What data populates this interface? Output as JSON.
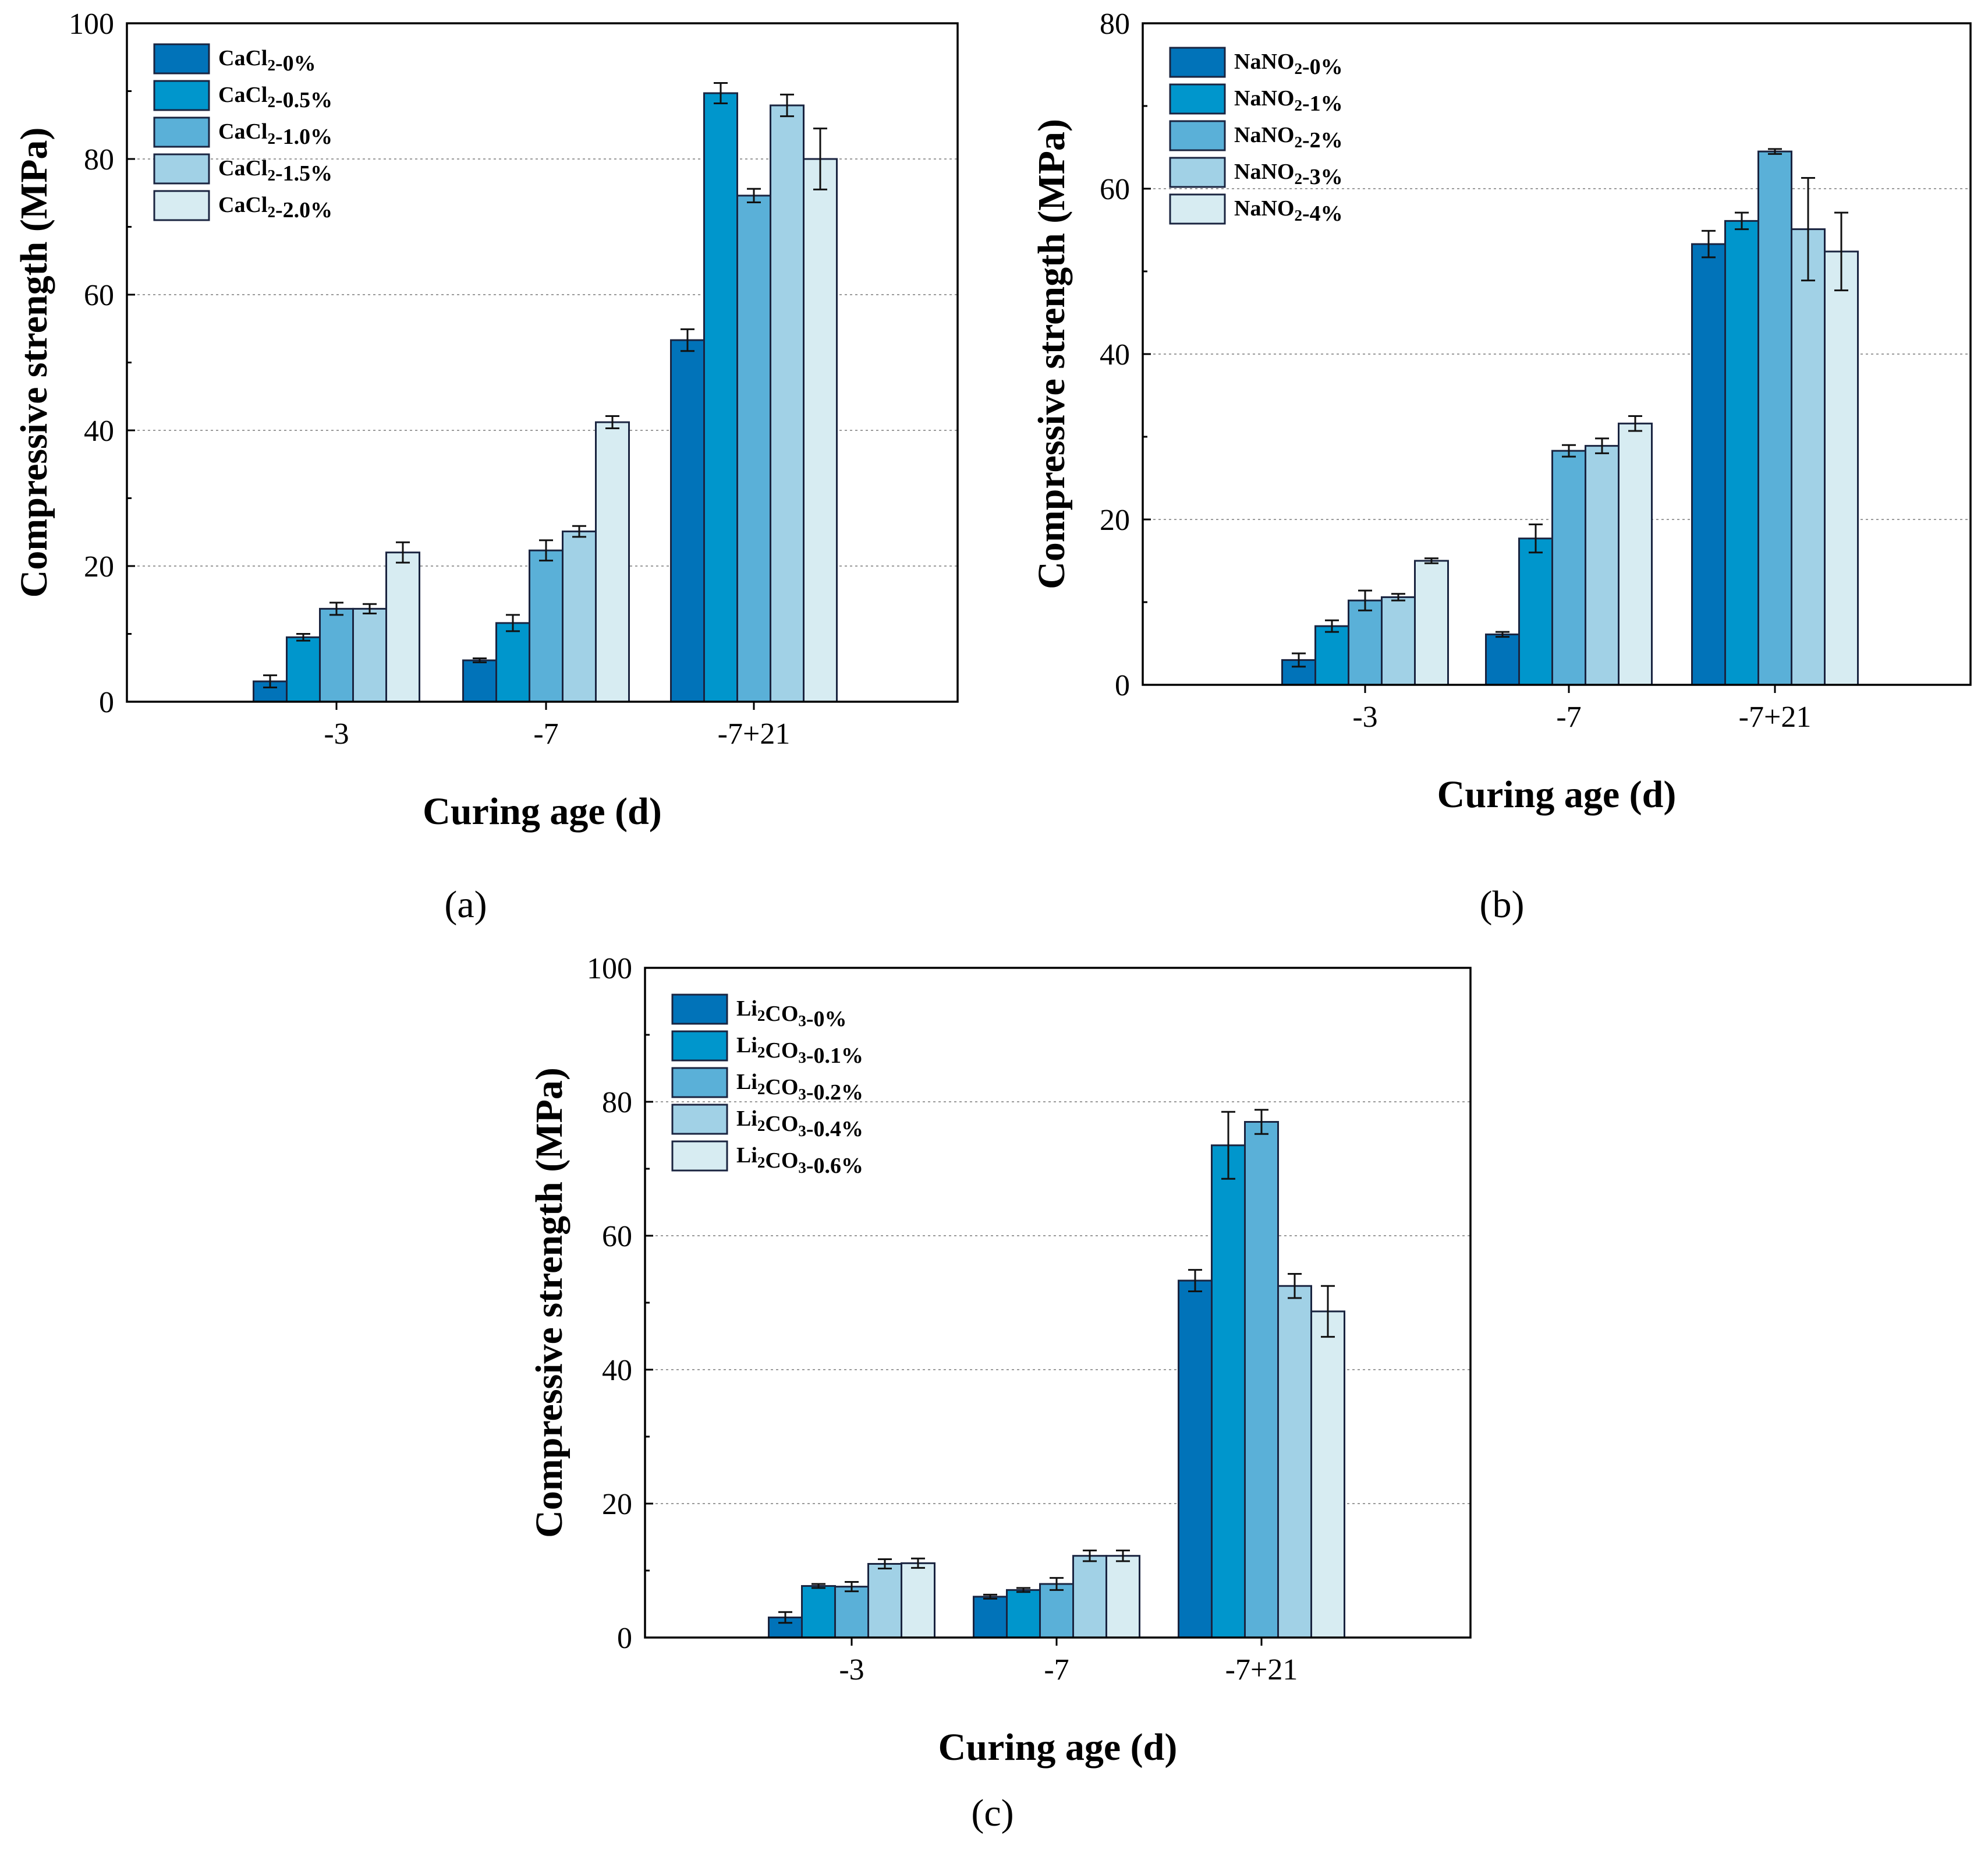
{
  "colors": [
    "#0173b9",
    "#0096cc",
    "#5ab0d8",
    "#a1d1e6",
    "#d7ecf2"
  ],
  "chart_data": [
    {
      "type": "bar",
      "panel_label": "(a)",
      "xlabel": "Curing age (d)",
      "ylabel": "Compressive strength (MPa)",
      "ylim": [
        0,
        100
      ],
      "yticks": [
        "0",
        "20",
        "40",
        "60",
        "80",
        "100"
      ],
      "categories": [
        "-3",
        "-7",
        "-7+21"
      ],
      "grid": true,
      "legend_position": "top-left",
      "series": [
        {
          "name": "CaCl₂-0%",
          "values": [
            3.0,
            6.1,
            53.3
          ],
          "errors": [
            0.9,
            0.3,
            1.6
          ]
        },
        {
          "name": "CaCl₂-0.5%",
          "values": [
            9.5,
            11.6,
            89.7
          ],
          "errors": [
            0.5,
            1.2,
            1.5
          ]
        },
        {
          "name": "CaCl₂-1.0%",
          "values": [
            13.7,
            22.3,
            74.6
          ],
          "errors": [
            0.9,
            1.5,
            1.0
          ]
        },
        {
          "name": "CaCl₂-1.5%",
          "values": [
            13.7,
            25.1,
            87.9
          ],
          "errors": [
            0.7,
            0.8,
            1.6
          ]
        },
        {
          "name": "CaCl₂-2.0%",
          "values": [
            22.0,
            41.2,
            80.0
          ],
          "errors": [
            1.5,
            0.9,
            4.5
          ]
        }
      ]
    },
    {
      "type": "bar",
      "panel_label": "(b)",
      "xlabel": "Curing age (d)",
      "ylabel": "Compressive strength (MPa)",
      "ylim": [
        0,
        80
      ],
      "yticks": [
        "0",
        "20",
        "40",
        "60",
        "80"
      ],
      "categories": [
        "-3",
        "-7",
        "-7+21"
      ],
      "grid": true,
      "legend_position": "top-left",
      "series": [
        {
          "name": "NaNO₂-0%",
          "values": [
            3.0,
            6.1,
            53.3
          ],
          "errors": [
            0.8,
            0.3,
            1.6
          ]
        },
        {
          "name": "NaNO₂-1%",
          "values": [
            7.1,
            17.7,
            56.1
          ],
          "errors": [
            0.7,
            1.7,
            1.0
          ]
        },
        {
          "name": "NaNO₂-2%",
          "values": [
            10.2,
            28.3,
            64.5
          ],
          "errors": [
            1.2,
            0.7,
            0.3
          ]
        },
        {
          "name": "NaNO₂-3%",
          "values": [
            10.6,
            28.9,
            55.1
          ],
          "errors": [
            0.4,
            0.9,
            6.2
          ]
        },
        {
          "name": "NaNO₂-4%",
          "values": [
            15.0,
            31.6,
            52.4
          ],
          "errors": [
            0.3,
            0.9,
            4.7
          ]
        }
      ]
    },
    {
      "type": "bar",
      "panel_label": "(c)",
      "xlabel": "Curing age (d)",
      "ylabel": "Compressive strength (MPa)",
      "ylim": [
        0,
        100
      ],
      "yticks": [
        "0",
        "20",
        "40",
        "60",
        "80",
        "100"
      ],
      "categories": [
        "-3",
        "-7",
        "-7+21"
      ],
      "grid": true,
      "legend_position": "top-left",
      "series": [
        {
          "name": "Li₂CO₃-0%",
          "values": [
            3.0,
            6.1,
            53.3
          ],
          "errors": [
            0.8,
            0.3,
            1.6
          ]
        },
        {
          "name": "Li₂CO₃-0.1%",
          "values": [
            7.7,
            7.1,
            73.5
          ],
          "errors": [
            0.3,
            0.3,
            5.0
          ]
        },
        {
          "name": "Li₂CO₃-0.2%",
          "values": [
            7.6,
            8.0,
            77.0
          ],
          "errors": [
            0.7,
            0.9,
            1.8
          ]
        },
        {
          "name": "Li₂CO₃-0.4%",
          "values": [
            11.0,
            12.2,
            52.5
          ],
          "errors": [
            0.7,
            0.8,
            1.8
          ]
        },
        {
          "name": "Li₂CO₃-0.6%",
          "values": [
            11.1,
            12.2,
            48.7
          ],
          "errors": [
            0.7,
            0.8,
            3.8
          ]
        }
      ]
    }
  ]
}
